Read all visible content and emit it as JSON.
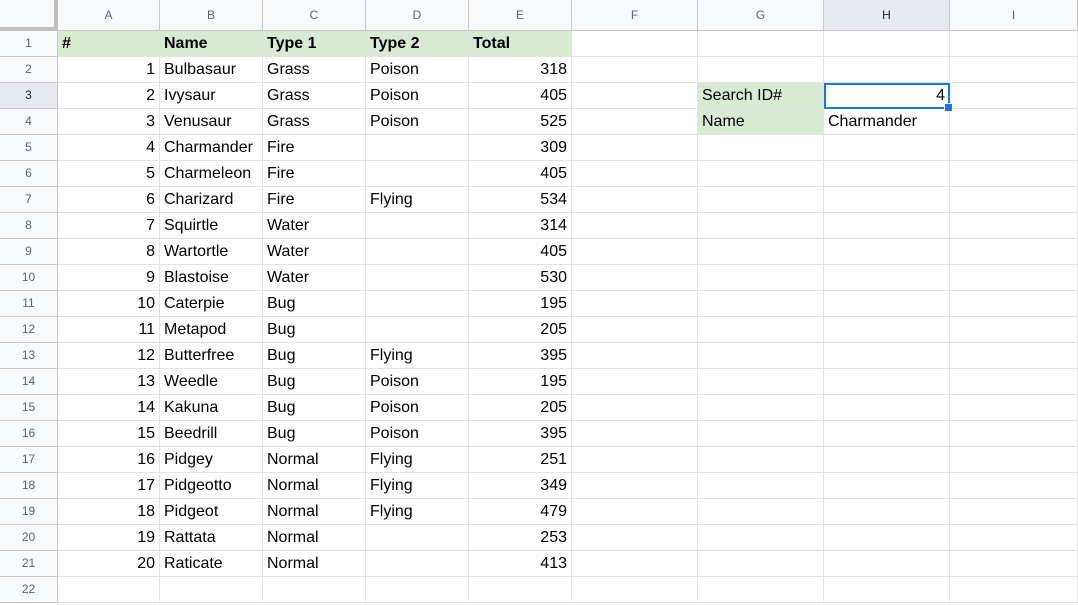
{
  "columns": [
    "A",
    "B",
    "C",
    "D",
    "E",
    "F",
    "G",
    "H",
    "I"
  ],
  "header_row": [
    "#",
    "Name",
    "Type 1",
    "Type 2",
    "Total"
  ],
  "rows": [
    [
      1,
      "Bulbasaur",
      "Grass",
      "Poison",
      318
    ],
    [
      2,
      "Ivysaur",
      "Grass",
      "Poison",
      405
    ],
    [
      3,
      "Venusaur",
      "Grass",
      "Poison",
      525
    ],
    [
      4,
      "Charmander",
      "Fire",
      "",
      309
    ],
    [
      5,
      "Charmeleon",
      "Fire",
      "",
      405
    ],
    [
      6,
      "Charizard",
      "Fire",
      "Flying",
      534
    ],
    [
      7,
      "Squirtle",
      "Water",
      "",
      314
    ],
    [
      8,
      "Wartortle",
      "Water",
      "",
      405
    ],
    [
      9,
      "Blastoise",
      "Water",
      "",
      530
    ],
    [
      10,
      "Caterpie",
      "Bug",
      "",
      195
    ],
    [
      11,
      "Metapod",
      "Bug",
      "",
      205
    ],
    [
      12,
      "Butterfree",
      "Bug",
      "Flying",
      395
    ],
    [
      13,
      "Weedle",
      "Bug",
      "Poison",
      195
    ],
    [
      14,
      "Kakuna",
      "Bug",
      "Poison",
      205
    ],
    [
      15,
      "Beedrill",
      "Bug",
      "Poison",
      395
    ],
    [
      16,
      "Pidgey",
      "Normal",
      "Flying",
      251
    ],
    [
      17,
      "Pidgeotto",
      "Normal",
      "Flying",
      349
    ],
    [
      18,
      "Pidgeot",
      "Normal",
      "Flying",
      479
    ],
    [
      19,
      "Rattata",
      "Normal",
      "",
      253
    ],
    [
      20,
      "Raticate",
      "Normal",
      "",
      413
    ]
  ],
  "lookup": {
    "search_label": "Search ID#",
    "search_value": "4",
    "name_label": "Name",
    "name_value": "Charmander"
  },
  "row_count": 22,
  "active_cell": "H3",
  "colors": {
    "header_fill": "#d9ead3",
    "selection": "#1a73e8"
  }
}
